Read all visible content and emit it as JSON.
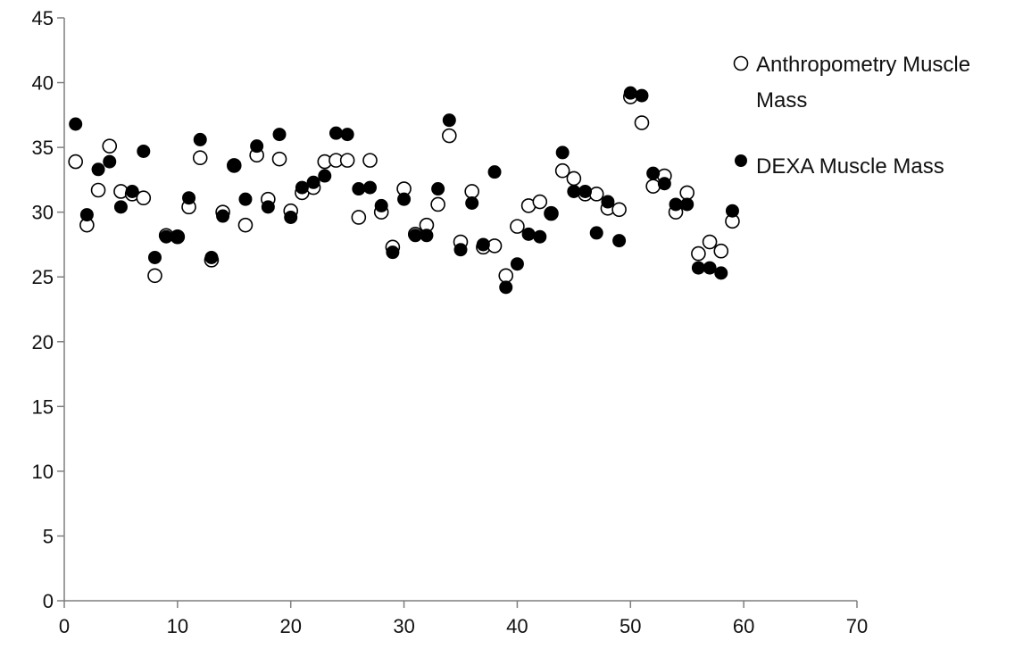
{
  "chart_data": {
    "type": "scatter",
    "title": "",
    "xlabel": "",
    "ylabel": "",
    "xlim": [
      0,
      70
    ],
    "ylim": [
      0,
      45
    ],
    "x_ticks": [
      0,
      10,
      20,
      30,
      40,
      50,
      60,
      70
    ],
    "y_ticks": [
      0,
      5,
      10,
      15,
      20,
      25,
      30,
      35,
      40,
      45
    ],
    "grid": false,
    "legend_position": "top-right",
    "series": [
      {
        "name": "Anthropometry Muscle Mass",
        "marker": "open-circle",
        "color": "#000000",
        "x": [
          1,
          2,
          3,
          4,
          5,
          6,
          7,
          8,
          9,
          10,
          11,
          12,
          13,
          14,
          15,
          16,
          17,
          18,
          19,
          20,
          21,
          22,
          23,
          24,
          25,
          26,
          27,
          28,
          29,
          30,
          31,
          32,
          33,
          34,
          35,
          36,
          37,
          38,
          39,
          40,
          41,
          42,
          43,
          44,
          45,
          46,
          47,
          48,
          49,
          50,
          51,
          52,
          53,
          54,
          55,
          56,
          57,
          58,
          59
        ],
        "y": [
          33.9,
          29.0,
          31.7,
          35.1,
          31.6,
          31.4,
          31.1,
          25.1,
          28.2,
          28.1,
          30.4,
          34.2,
          26.3,
          30.0,
          33.6,
          29.0,
          34.4,
          31.0,
          34.1,
          30.1,
          31.5,
          31.9,
          33.9,
          34.0,
          34.0,
          29.6,
          34.0,
          30.0,
          27.3,
          31.8,
          28.3,
          29.0,
          30.6,
          35.9,
          27.7,
          31.6,
          27.3,
          27.4,
          25.1,
          28.9,
          30.5,
          30.8,
          29.9,
          33.2,
          32.6,
          31.4,
          31.4,
          30.3,
          30.2,
          38.9,
          36.9,
          32.0,
          32.8,
          30.0,
          31.5,
          26.8,
          27.7,
          27.0,
          29.3
        ]
      },
      {
        "name": "DEXA Muscle Mass",
        "marker": "filled-circle",
        "color": "#000000",
        "x": [
          1,
          2,
          3,
          4,
          5,
          6,
          7,
          8,
          9,
          10,
          11,
          12,
          13,
          14,
          15,
          16,
          17,
          18,
          19,
          20,
          21,
          22,
          23,
          24,
          25,
          26,
          27,
          28,
          29,
          30,
          31,
          32,
          33,
          34,
          35,
          36,
          37,
          38,
          39,
          40,
          41,
          42,
          43,
          44,
          45,
          46,
          47,
          48,
          49,
          50,
          51,
          52,
          53,
          54,
          55,
          56,
          57,
          58,
          59
        ],
        "y": [
          36.8,
          29.8,
          33.3,
          33.9,
          30.4,
          31.6,
          34.7,
          26.5,
          28.1,
          28.1,
          31.1,
          35.6,
          26.5,
          29.7,
          33.6,
          31.0,
          35.1,
          30.4,
          36.0,
          29.6,
          31.9,
          32.3,
          32.8,
          36.1,
          36.0,
          31.8,
          31.9,
          30.5,
          26.9,
          31.0,
          28.2,
          28.2,
          31.8,
          37.1,
          27.1,
          30.7,
          27.5,
          33.1,
          24.2,
          26.0,
          28.3,
          28.1,
          29.9,
          34.6,
          31.6,
          31.6,
          28.4,
          30.8,
          27.8,
          39.2,
          39.0,
          33.0,
          32.2,
          30.6,
          30.6,
          25.7,
          25.7,
          25.3,
          30.1
        ]
      }
    ]
  }
}
